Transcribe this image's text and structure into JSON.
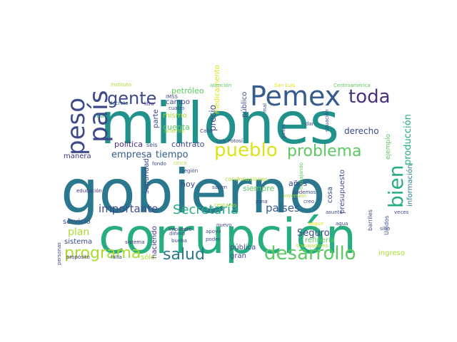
{
  "palette": {
    "purple": "#46327e",
    "indigo": "#3e4a89",
    "blue": "#365c8d",
    "teal_dark": "#2a788e",
    "teal": "#21918c",
    "green": "#27ad81",
    "green_light": "#5ec962",
    "lime": "#aadc32",
    "yellow": "#dde318"
  },
  "words": [
    "gobierno",
    "corrupción",
    "millones",
    "Pemex",
    "peso",
    "país",
    "toda",
    "gente",
    "pueblo",
    "problema",
    "bien",
    "desarrollo",
    "salud",
    "programa",
    "Secretaría",
    "importante",
    "producción",
    "empresa",
    "tiempo",
    "países",
    "plan",
    "Seguro",
    "derecho",
    "política",
    "contrato",
    "cuenta",
    "precio",
    "petróleo",
    "medicamento",
    "público",
    "mismo",
    "campo",
    "parte",
    "años",
    "presupuesto",
    "información",
    "siempre",
    "hoy",
    "seguridad",
    "refinería",
    "cosa",
    "haciendo",
    "pública",
    "gran",
    "sistema",
    "servicio",
    "manera",
    "ingreso",
    "sólo",
    "ejemplo",
    "barriles",
    "Unidos",
    "seis",
    "IMSS",
    "Instituto",
    "decreto",
    "litro",
    "cuatro",
    "acuerdo",
    "Cabo",
    "Luis Potosí",
    "condonaciones",
    "mal",
    "dar",
    "pesos",
    "situación",
    "trabajando",
    "creo",
    "podemos",
    "inversión",
    "zona",
    "nuevo",
    "apoyo",
    "poder",
    "dinero",
    "impuesto",
    "buena",
    "agua",
    "asunto",
    "veces",
    "sino",
    "historia",
    "educación",
    "región",
    "fondo",
    "saben",
    "cinco",
    "centavos",
    "personas",
    "propósito",
    "falta",
    "seguir",
    "trabajadores",
    "atención",
    "San Luis",
    "Centroamérica",
    "sistema"
  ]
}
